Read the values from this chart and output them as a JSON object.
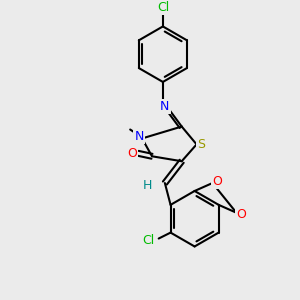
{
  "background_color": "#ebebeb",
  "bond_color": "#000000",
  "bond_lw": 1.5,
  "atom_colors": {
    "N": "#0000ff",
    "O": "#ff0000",
    "S": "#999900",
    "Cl_top": "#00bb00",
    "Cl_bot": "#00bb00",
    "H": "#008b8b"
  },
  "font_size": 9,
  "font_size_small": 8
}
